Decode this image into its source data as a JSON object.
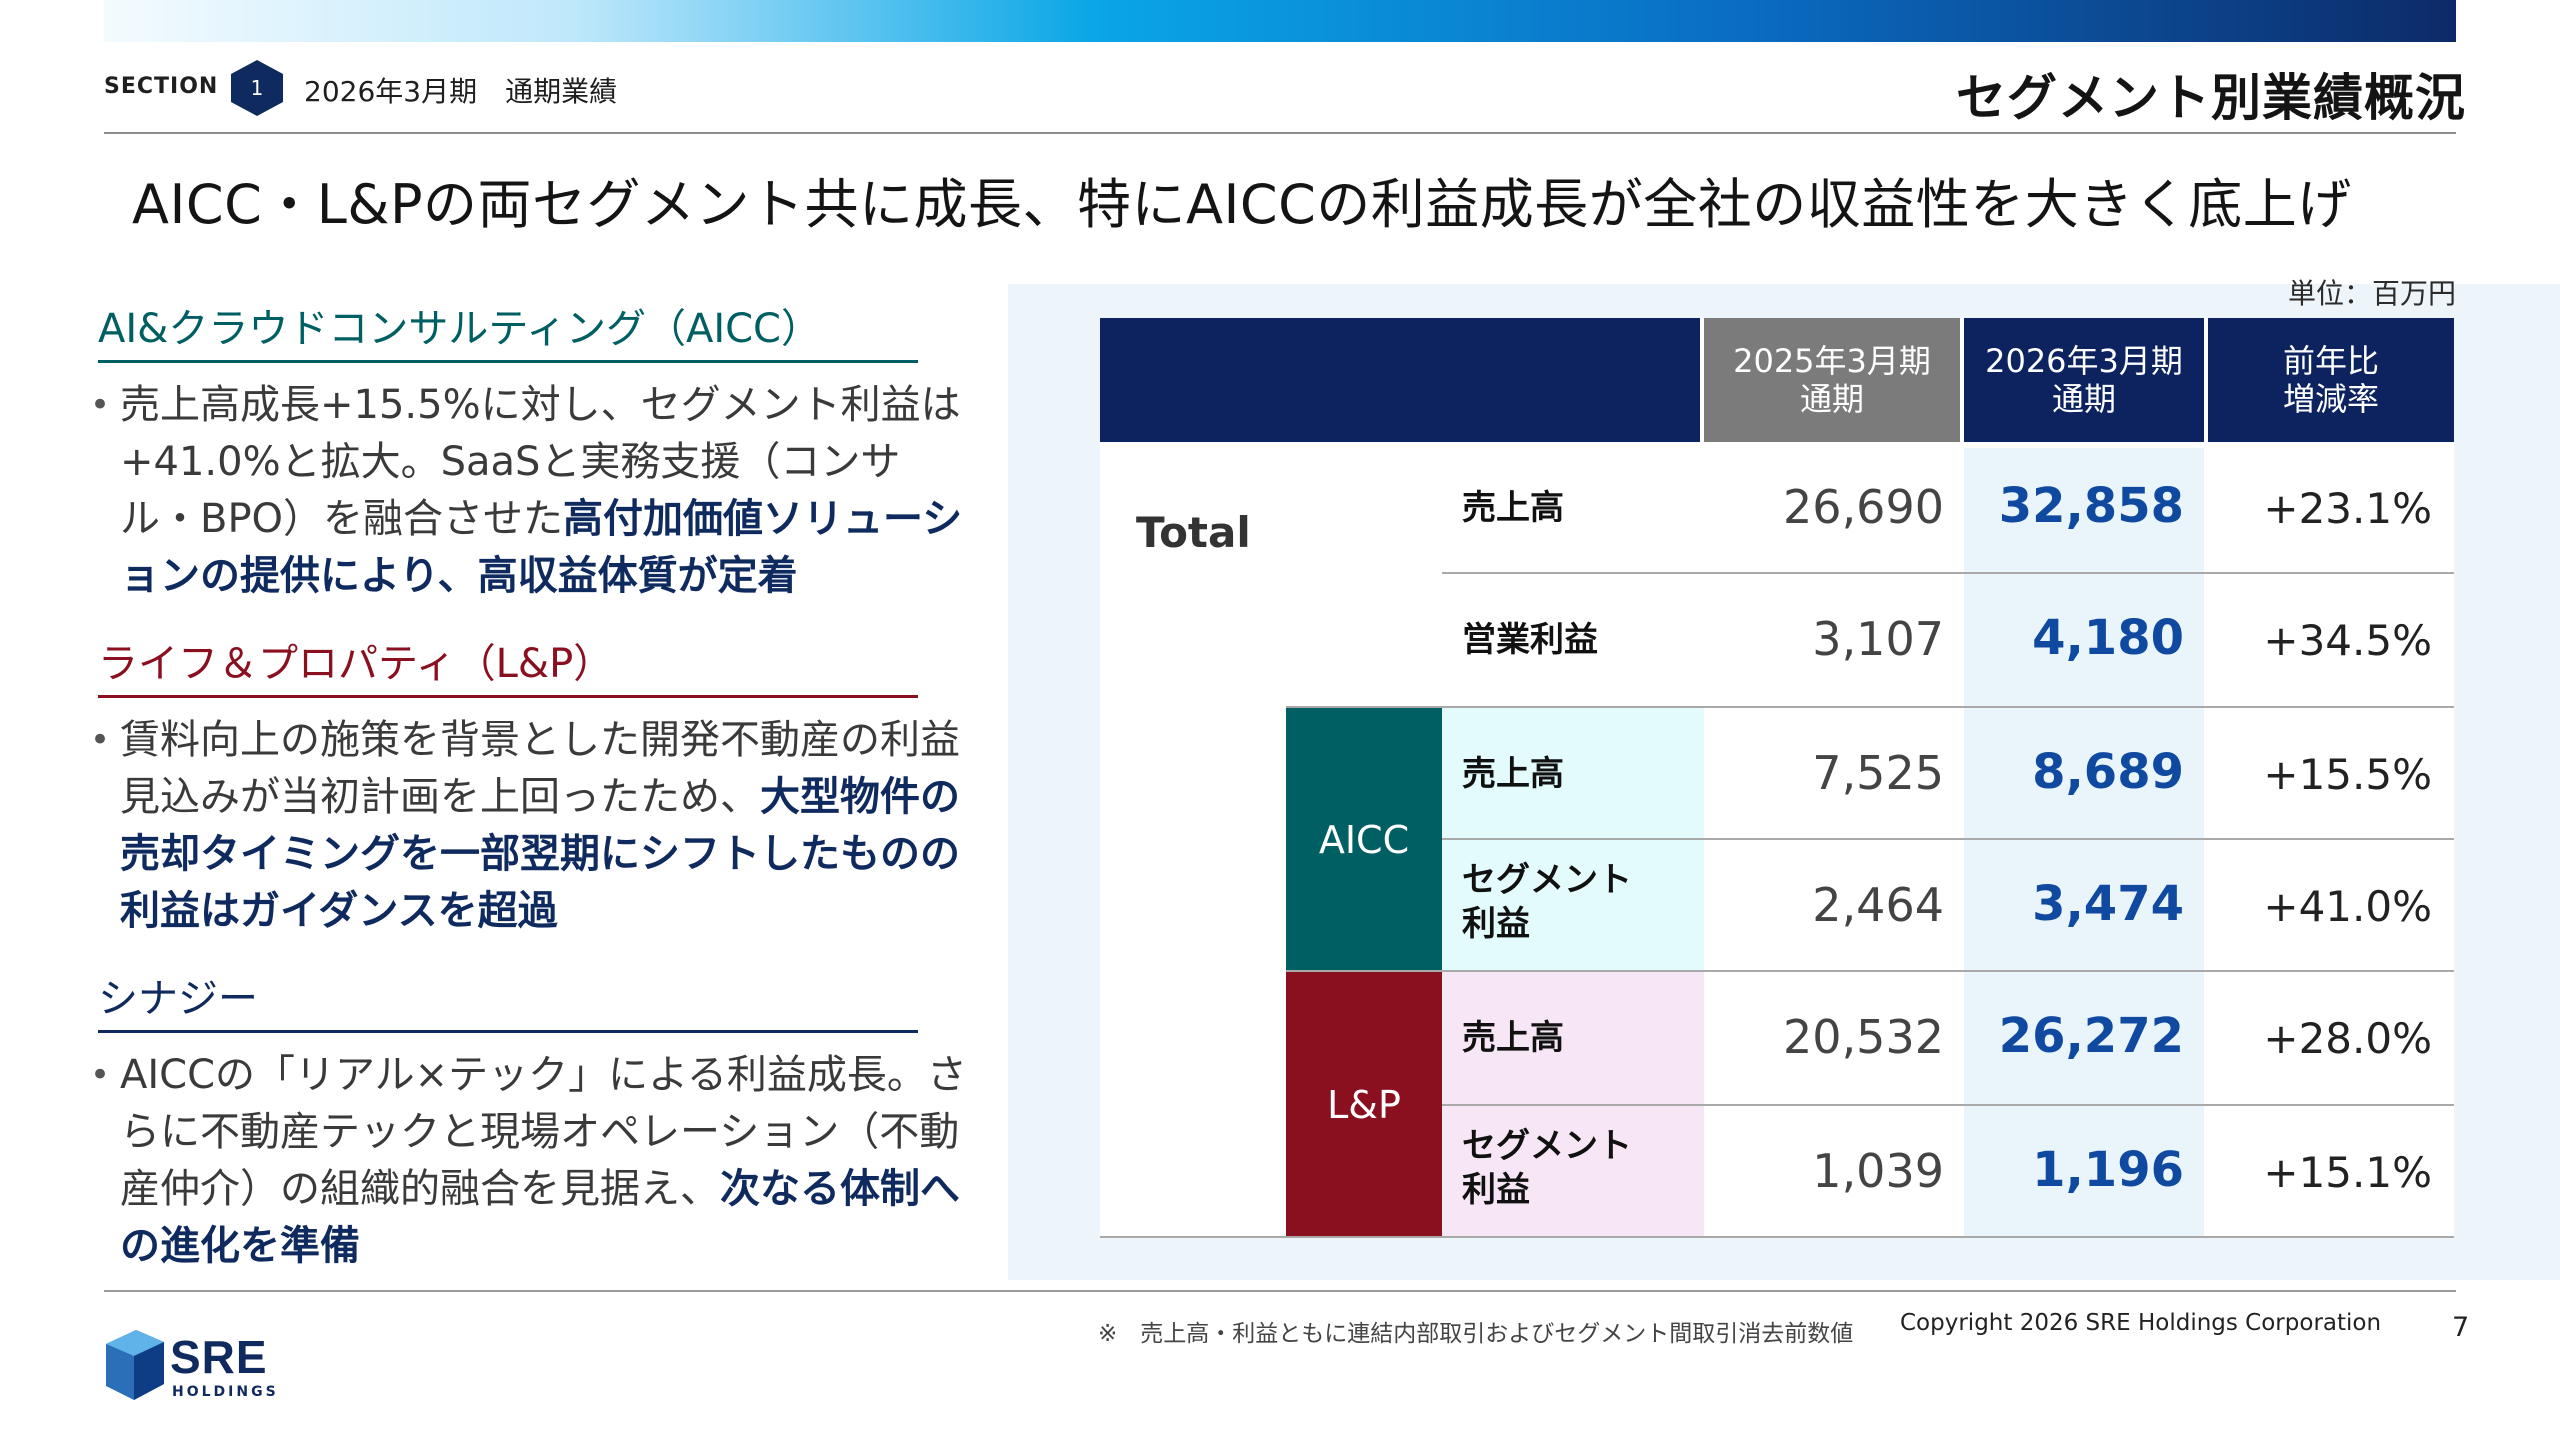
{
  "header": {
    "section_label": "SECTION",
    "section_number": "1",
    "section_title": "2026年3月期　通期業績",
    "page_heading": "セグメント別業績概況"
  },
  "headline": "AICC・L&Pの両セグメント共に成長、特にAICCの利益成長が全社の収益性を大きく底上げ",
  "left": {
    "aicc": {
      "heading": "AI&クラウドコンサルティング（AICC）",
      "text": "売上高成長+15.5%に対し、セグメント利益は+41.0%と拡大。SaaSと実務支援（コンサル・BPO）を融合させた",
      "emphasis": "高付加価値ソリューションの提供により、高収益体質が定着"
    },
    "lp": {
      "heading": "ライフ＆プロパティ（L&P）",
      "text": "賃料向上の施策を背景とした開発不動産の利益見込みが当初計画を上回ったため、",
      "emphasis": "大型物件の売却タイミングを一部翌期にシフトしたものの利益はガイダンスを超過"
    },
    "synergy": {
      "heading": "シナジー",
      "text": "AICCの「リアル×テック」による利益成長。さらに不動産テックと現場オペレーション（不動産仲介）の組織的融合を見据え、",
      "emphasis": "次なる体制への進化を準備"
    }
  },
  "table": {
    "unit": "単位：百万円",
    "headers": {
      "fy25_line1": "2025年3月期",
      "fy25_line2": "通期",
      "fy26_line1": "2026年3月期",
      "fy26_line2": "通期",
      "yoy_line1": "前年比",
      "yoy_line2": "増減率"
    },
    "total_label": "Total",
    "aicc_label": "AICC",
    "lp_label": "L&P",
    "rows": [
      {
        "label": "売上高",
        "fy25": "26,690",
        "fy26": "32,858",
        "yoy": "+23.1%"
      },
      {
        "label": "営業利益",
        "fy25": "3,107",
        "fy26": "4,180",
        "yoy": "+34.5%"
      },
      {
        "label": "売上高",
        "fy25": "7,525",
        "fy26": "8,689",
        "yoy": "+15.5%"
      },
      {
        "label": "セグメント利益",
        "fy25": "2,464",
        "fy26": "3,474",
        "yoy": "+41.0%"
      },
      {
        "label": "売上高",
        "fy25": "20,532",
        "fy26": "26,272",
        "yoy": "+28.0%"
      },
      {
        "label": "セグメント利益",
        "fy25": "1,039",
        "fy26": "1,196",
        "yoy": "+15.1%"
      }
    ]
  },
  "footer": {
    "note": "※　売上高・利益ともに連結内部取引およびセグメント間取引消去前数値",
    "copyright": "Copyright 2026 SRE Holdings Corporation",
    "page_number": "7",
    "logo_text": "SRE",
    "logo_sub": "HOLDINGS"
  },
  "colors": {
    "navy": "#0d2360",
    "aicc": "#005f63",
    "lp": "#8a1020",
    "fy26_value": "#0f4aa0"
  }
}
